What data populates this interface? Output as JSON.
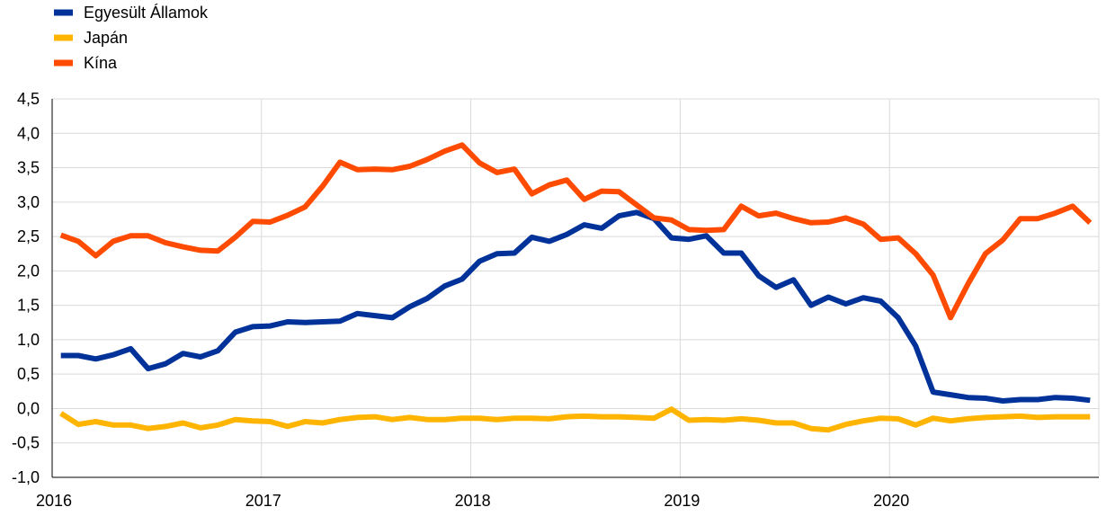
{
  "chart_data": {
    "type": "line",
    "title": "",
    "xlabel": "",
    "ylabel": "",
    "ylim": [
      -1.0,
      4.5
    ],
    "yticks": [
      "-1,0",
      "-0,5",
      "0,0",
      "0,5",
      "1,0",
      "1,5",
      "2,0",
      "2,5",
      "3,0",
      "3,5",
      "4,0",
      "4,5"
    ],
    "ytick_values": [
      -1.0,
      -0.5,
      0.0,
      0.5,
      1.0,
      1.5,
      2.0,
      2.5,
      3.0,
      3.5,
      4.0,
      4.5
    ],
    "xticks": [
      "2016",
      "2017",
      "2018",
      "2019",
      "2020"
    ],
    "x_start": "2016-01",
    "x_end": "2020-12",
    "grid": true,
    "legend_position": "top-left",
    "series": [
      {
        "name": "Egyesült Államok",
        "color": "#003299",
        "values": [
          0.77,
          0.77,
          0.72,
          0.78,
          0.87,
          0.58,
          0.65,
          0.8,
          0.75,
          0.84,
          1.11,
          1.19,
          1.2,
          1.26,
          1.25,
          1.26,
          1.27,
          1.38,
          1.35,
          1.32,
          1.48,
          1.6,
          1.78,
          1.88,
          2.14,
          2.25,
          2.26,
          2.49,
          2.43,
          2.53,
          2.67,
          2.62,
          2.8,
          2.85,
          2.76,
          2.48,
          2.46,
          2.51,
          2.26,
          2.26,
          1.93,
          1.76,
          1.87,
          1.5,
          1.62,
          1.52,
          1.61,
          1.56,
          1.32,
          0.91,
          0.24,
          0.2,
          0.16,
          0.15,
          0.11,
          0.13,
          0.13,
          0.16,
          0.15,
          0.12
        ]
      },
      {
        "name": "Japán",
        "color": "#ffb400",
        "values": [
          -0.07,
          -0.23,
          -0.19,
          -0.24,
          -0.24,
          -0.29,
          -0.26,
          -0.21,
          -0.28,
          -0.24,
          -0.16,
          -0.18,
          -0.19,
          -0.26,
          -0.19,
          -0.21,
          -0.16,
          -0.13,
          -0.12,
          -0.16,
          -0.13,
          -0.16,
          -0.16,
          -0.14,
          -0.14,
          -0.16,
          -0.14,
          -0.14,
          -0.15,
          -0.12,
          -0.11,
          -0.12,
          -0.12,
          -0.13,
          -0.14,
          -0.01,
          -0.17,
          -0.16,
          -0.17,
          -0.15,
          -0.17,
          -0.21,
          -0.21,
          -0.29,
          -0.31,
          -0.23,
          -0.18,
          -0.14,
          -0.15,
          -0.24,
          -0.14,
          -0.18,
          -0.15,
          -0.13,
          -0.12,
          -0.11,
          -0.13,
          -0.12,
          -0.12,
          -0.12
        ]
      },
      {
        "name": "Kína",
        "color": "#ff4b00",
        "values": [
          2.52,
          2.43,
          2.22,
          2.43,
          2.51,
          2.51,
          2.41,
          2.35,
          2.3,
          2.29,
          2.49,
          2.72,
          2.71,
          2.81,
          2.93,
          3.23,
          3.58,
          3.47,
          3.48,
          3.47,
          3.52,
          3.62,
          3.74,
          3.83,
          3.57,
          3.43,
          3.48,
          3.12,
          3.25,
          3.32,
          3.04,
          3.16,
          3.15,
          2.96,
          2.77,
          2.74,
          2.6,
          2.59,
          2.6,
          2.94,
          2.8,
          2.84,
          2.76,
          2.7,
          2.71,
          2.77,
          2.68,
          2.46,
          2.48,
          2.25,
          1.94,
          1.32,
          1.81,
          2.25,
          2.45,
          2.76,
          2.76,
          2.84,
          2.94,
          2.7
        ]
      }
    ]
  }
}
